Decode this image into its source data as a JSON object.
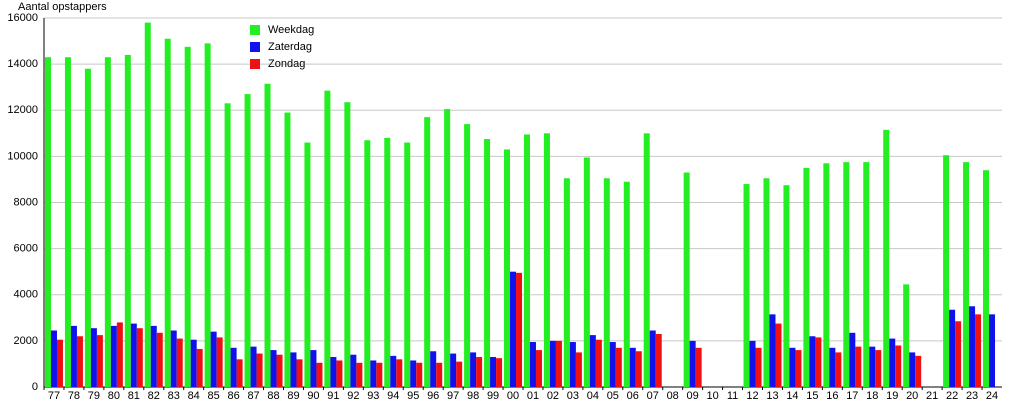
{
  "chart_data": {
    "type": "bar",
    "y_label": "Aantal opstappers",
    "categories": [
      "77",
      "78",
      "79",
      "80",
      "81",
      "82",
      "83",
      "84",
      "85",
      "86",
      "87",
      "88",
      "89",
      "90",
      "91",
      "92",
      "93",
      "94",
      "95",
      "96",
      "97",
      "98",
      "99",
      "00",
      "01",
      "02",
      "03",
      "04",
      "05",
      "06",
      "07",
      "08",
      "09",
      "10",
      "11",
      "12",
      "13",
      "14",
      "15",
      "16",
      "17",
      "18",
      "19",
      "20",
      "21",
      "22",
      "23",
      "24"
    ],
    "series": [
      {
        "name": "Weekdag",
        "color": "#22ee22",
        "values": [
          14300,
          14300,
          13800,
          14300,
          14400,
          15800,
          15100,
          14750,
          14900,
          12300,
          12700,
          13150,
          11900,
          10600,
          12850,
          12350,
          10700,
          10800,
          10600,
          11700,
          12050,
          11400,
          10750,
          10300,
          10950,
          11000,
          9050,
          9950,
          9050,
          8900,
          11000,
          null,
          9300,
          null,
          null,
          8800,
          9050,
          8750,
          9500,
          9700,
          9750,
          9750,
          11150,
          4450,
          null,
          10050,
          9750,
          9400
        ]
      },
      {
        "name": "Zaterdag",
        "color": "#1111ee",
        "values": [
          2450,
          2650,
          2550,
          2650,
          2750,
          2650,
          2450,
          2050,
          2400,
          1700,
          1750,
          1600,
          1500,
          1600,
          1300,
          1400,
          1150,
          1350,
          1150,
          1550,
          1450,
          1500,
          1300,
          5000,
          1950,
          2000,
          1950,
          2250,
          1950,
          1700,
          2450,
          null,
          2000,
          null,
          null,
          2000,
          3150,
          1700,
          2200,
          1700,
          2350,
          1750,
          2100,
          1500,
          null,
          3350,
          3500,
          3150
        ]
      },
      {
        "name": "Zondag",
        "color": "#ee1111",
        "values": [
          2050,
          2200,
          2250,
          2800,
          2550,
          2350,
          2100,
          1650,
          2150,
          1200,
          1450,
          1400,
          1200,
          1050,
          1150,
          1050,
          1050,
          1200,
          1050,
          1050,
          1100,
          1300,
          1250,
          4950,
          1600,
          2000,
          1500,
          2050,
          1700,
          1550,
          2300,
          null,
          1700,
          null,
          null,
          1700,
          2750,
          1600,
          2150,
          1500,
          1750,
          1600,
          1800,
          1350,
          null,
          2850,
          3150,
          null
        ]
      }
    ],
    "ylim": [
      0,
      16000
    ],
    "yticks": [
      0,
      2000,
      4000,
      6000,
      8000,
      10000,
      12000,
      14000,
      16000
    ],
    "grid": true
  }
}
